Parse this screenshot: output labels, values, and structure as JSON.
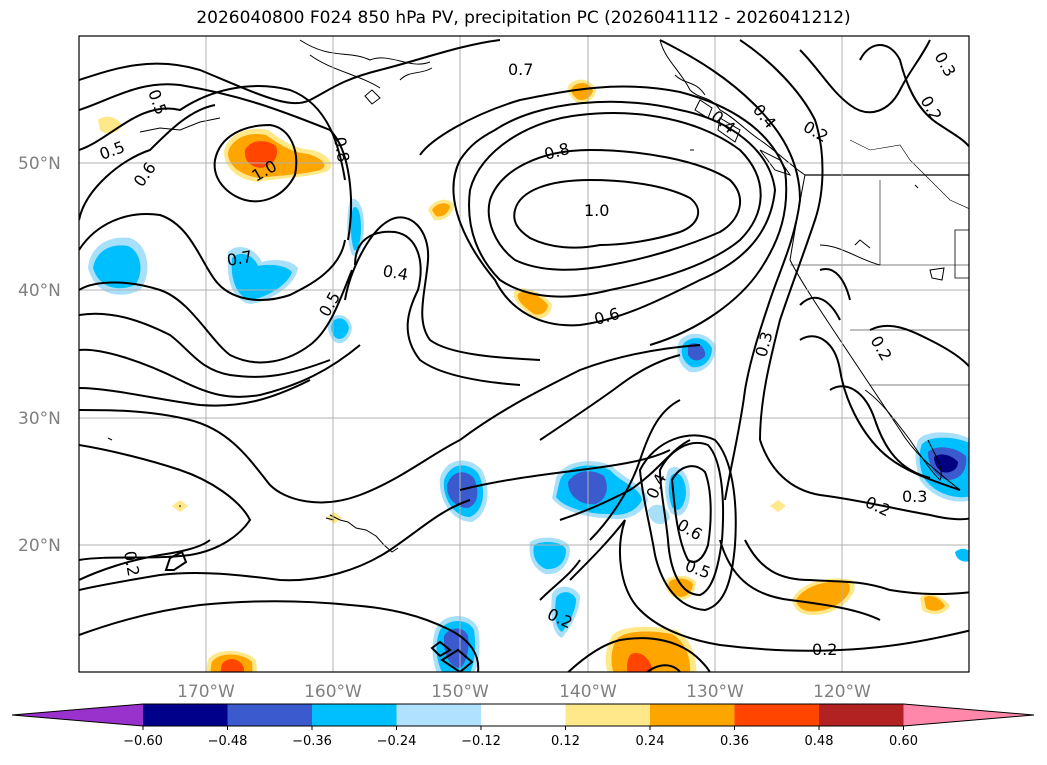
{
  "title": "2026040800 F024 850 hPa PV, precipitation PC (2026041112 - 2026041212)",
  "map": {
    "lon_range": [
      -180,
      -110
    ],
    "lat_range": [
      10,
      60
    ],
    "lat_labels": [
      "50°N",
      "40°N",
      "30°N",
      "20°N"
    ],
    "lon_labels": [
      "170°W",
      "160°W",
      "150°W",
      "140°W",
      "130°W",
      "120°W"
    ],
    "contour_labels": [
      "0.7",
      "0.5",
      "0.5",
      "0.6",
      "1.0",
      "0.8",
      "0.7",
      "0.4",
      "0.5",
      "0.8",
      "1.0",
      "0.6",
      "0.4",
      "0.2",
      "0.3",
      "0.2",
      "0.4",
      "0.3",
      "0.2",
      "0.3",
      "0.2",
      "0.4",
      "0.6",
      "0.5",
      "0.2",
      "0.2",
      "0.2"
    ],
    "fill_colors": {
      "neg_strong": "#000080",
      "neg_mid": "#3a5acd",
      "neg": "#00bfff",
      "neg_light": "#a8e0fa",
      "pos_light": "#ffe88a",
      "pos": "#ffa500",
      "pos_mid": "#ff4500",
      "pos_strong": "#b22222"
    }
  },
  "colorbar": {
    "ticks": [
      "−0.60",
      "−0.48",
      "−0.36",
      "−0.24",
      "−0.12",
      "0.12",
      "0.24",
      "0.36",
      "0.48",
      "0.60"
    ],
    "colors": [
      "#9932cc",
      "#00008b",
      "#3a5acd",
      "#00bfff",
      "#b0e2ff",
      "#ffffff",
      "#ffe88a",
      "#ffa500",
      "#ff4500",
      "#b22222",
      "#ff88aa"
    ]
  }
}
